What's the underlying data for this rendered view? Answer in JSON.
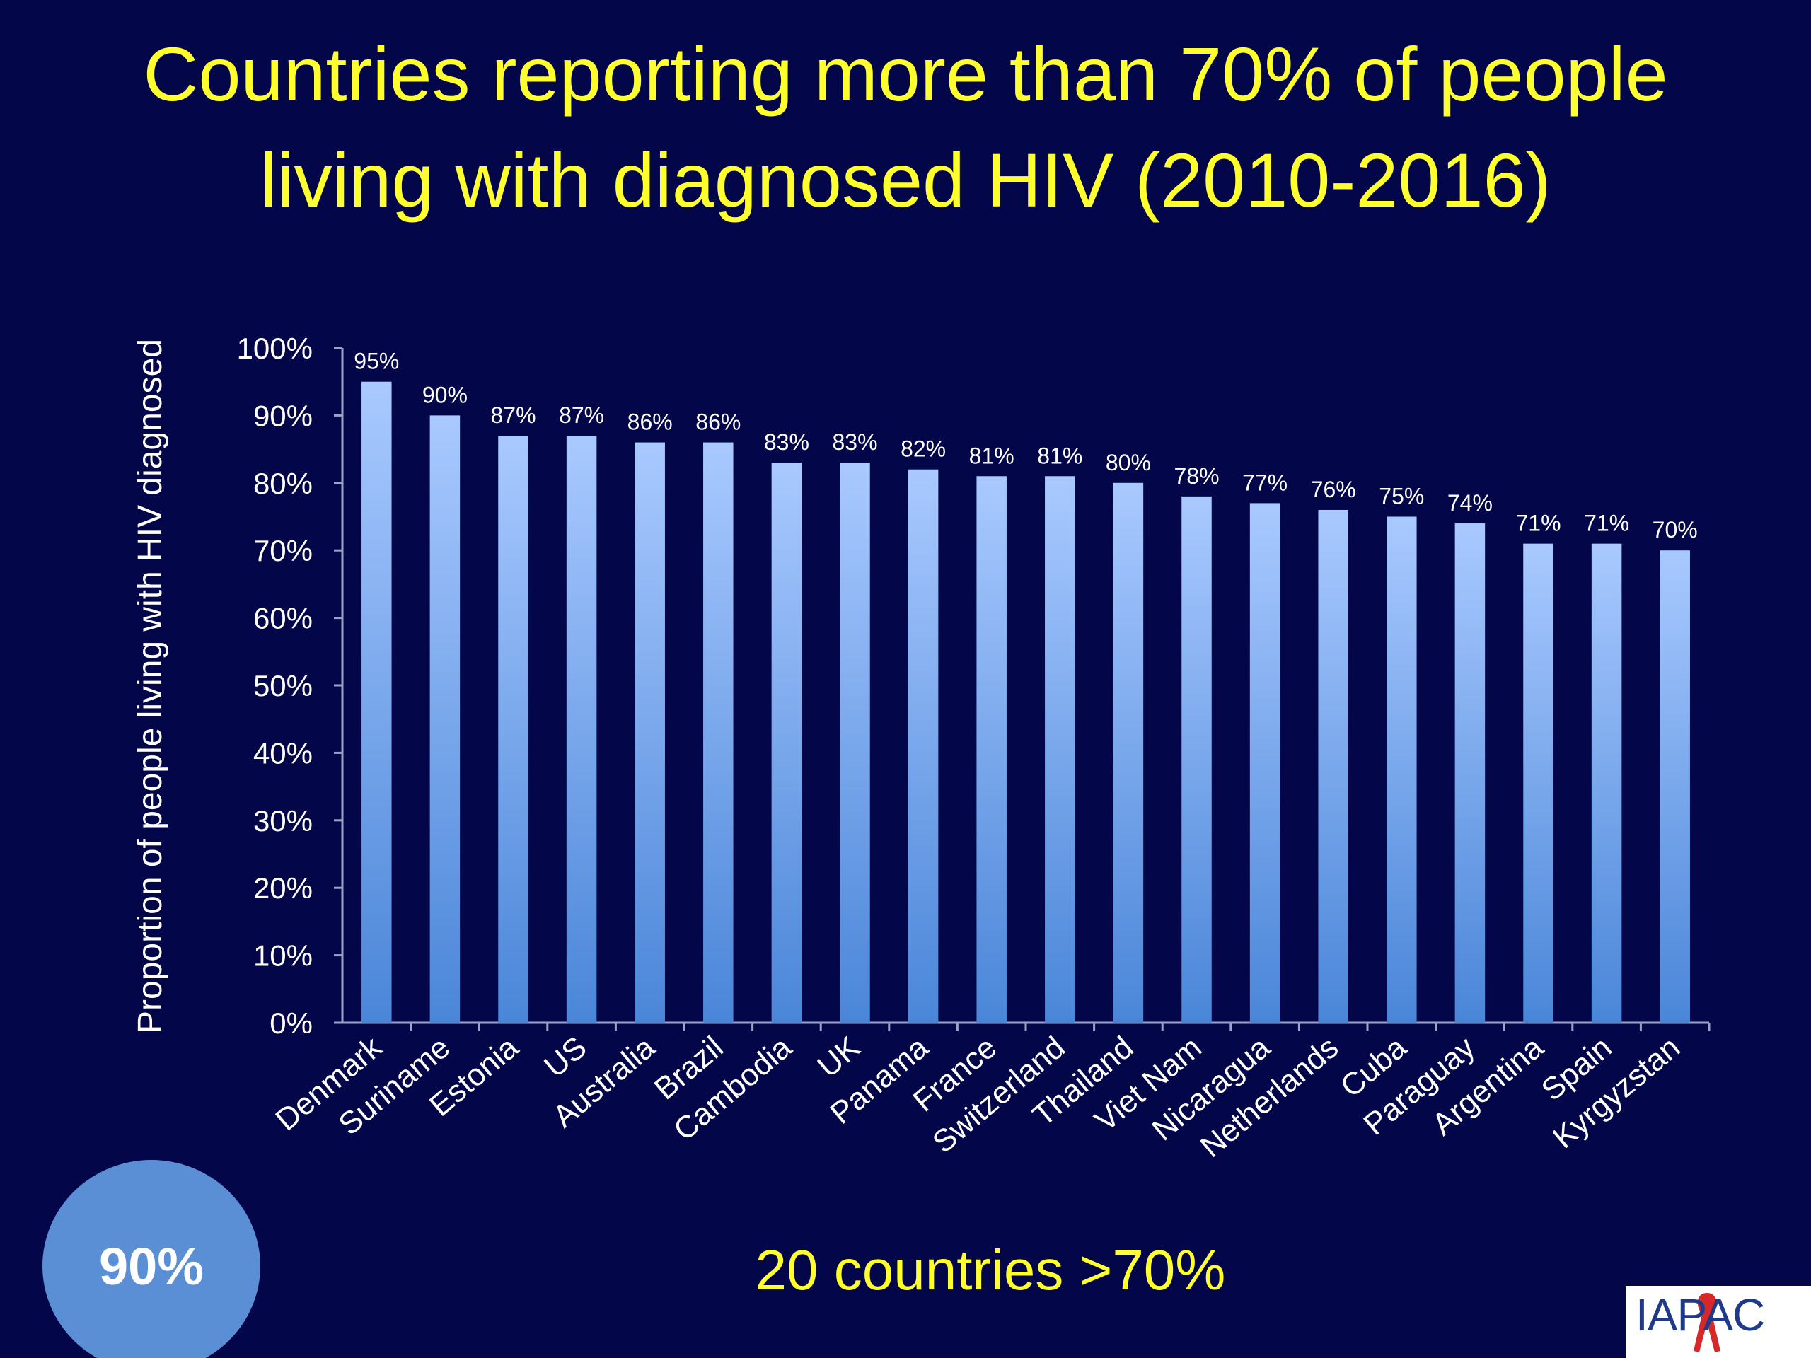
{
  "title": "Countries reporting more than 70% of people living with diagnosed HIV (2010-2016)",
  "bubble_label": "90%",
  "footnote": "20 countries >70%",
  "logo_text": "IAPAC",
  "colors": {
    "background": "#03074a",
    "title": "#ffff2e",
    "bar_top": "#a9c9ff",
    "bar_bottom": "#4a86d8",
    "axis_text": "#ffffff",
    "bubble": "#5a8fd6"
  },
  "chart_data": {
    "type": "bar",
    "ylabel": "Proportion of people living with HIV diagnosed",
    "ylim": [
      0,
      100
    ],
    "yticks": [
      "0%",
      "10%",
      "20%",
      "30%",
      "40%",
      "50%",
      "60%",
      "70%",
      "80%",
      "90%",
      "100%"
    ],
    "categories": [
      "Denmark",
      "Suriname",
      "Estonia",
      "US",
      "Australia",
      "Brazil",
      "Cambodia",
      "UK",
      "Panama",
      "France",
      "Switzerland",
      "Thailand",
      "Viet Nam",
      "Nicaragua",
      "Netherlands",
      "Cuba",
      "Paraguay",
      "Argentina",
      "Spain",
      "Kyrgyzstan"
    ],
    "values": [
      95,
      90,
      87,
      87,
      86,
      86,
      83,
      83,
      82,
      81,
      81,
      80,
      78,
      77,
      76,
      75,
      74,
      71,
      71,
      70
    ],
    "data_labels": [
      "95%",
      "90%",
      "87%",
      "87%",
      "86%",
      "86%",
      "83%",
      "83%",
      "82%",
      "81%",
      "81%",
      "80%",
      "78%",
      "77%",
      "76%",
      "75%",
      "74%",
      "71%",
      "71%",
      "70%"
    ],
    "grid": false,
    "legend": "none"
  }
}
